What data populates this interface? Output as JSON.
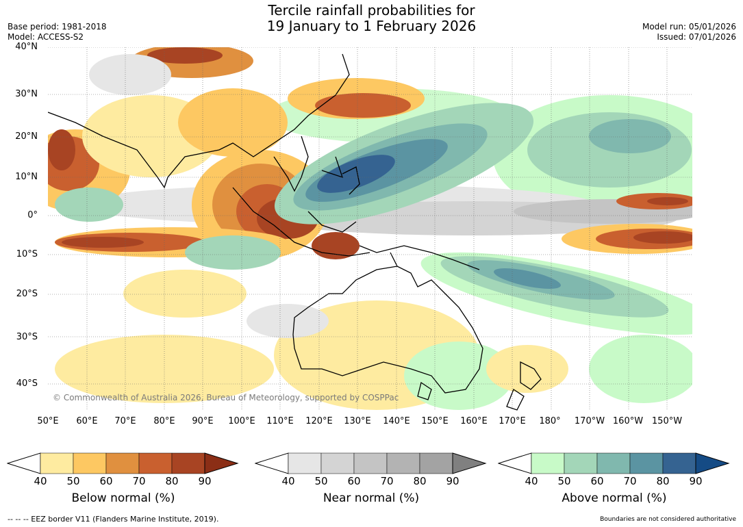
{
  "title_line1": "Tercile rainfall probabilities for",
  "title_line2": "19 January to 1 February 2026",
  "base_period": "Base period: 1981-2018",
  "model": "Model: ACCESS-S2",
  "model_run": "Model run: 05/01/2026",
  "issued": "Issued: 07/01/2026",
  "lat_labels": [
    "40°N",
    "30°N",
    "20°N",
    "10°N",
    "0°",
    "10°S",
    "20°S",
    "30°S",
    "40°S"
  ],
  "lon_labels": [
    "50°E",
    "60°E",
    "70°E",
    "80°E",
    "90°E",
    "100°E",
    "110°E",
    "120°E",
    "130°E",
    "140°E",
    "150°E",
    "160°E",
    "170°E",
    "180°",
    "170°W",
    "160°W",
    "150°W"
  ],
  "copyright": "© Commonwealth of Australia 2026, Bureau of Meteorology, supported by COSPPac",
  "colorbars": [
    {
      "label": "Below normal (%)",
      "ticks": [
        "40",
        "50",
        "60",
        "70",
        "80",
        "90"
      ],
      "colors": [
        "#ffffff",
        "#feeba0",
        "#fdc862",
        "#e0903f",
        "#c9602f",
        "#a84423",
        "#8b2e16"
      ]
    },
    {
      "label": "Near normal (%)",
      "ticks": [
        "40",
        "50",
        "60",
        "70",
        "80",
        "90"
      ],
      "colors": [
        "#ffffff",
        "#e6e6e6",
        "#d4d4d4",
        "#c4c4c4",
        "#b3b3b3",
        "#a3a3a3",
        "#808080"
      ]
    },
    {
      "label": "Above normal (%)",
      "ticks": [
        "40",
        "50",
        "60",
        "70",
        "80",
        "90"
      ],
      "colors": [
        "#ffffff",
        "#c8fac8",
        "#a3d6b8",
        "#80b8ae",
        "#5b94a2",
        "#356391",
        "#154b85"
      ]
    }
  ],
  "footer_left": "--  --  -- EEZ border V11 (Flanders Marine Institute, 2019).",
  "footer_right": "Boundaries are not considered authoritative"
}
